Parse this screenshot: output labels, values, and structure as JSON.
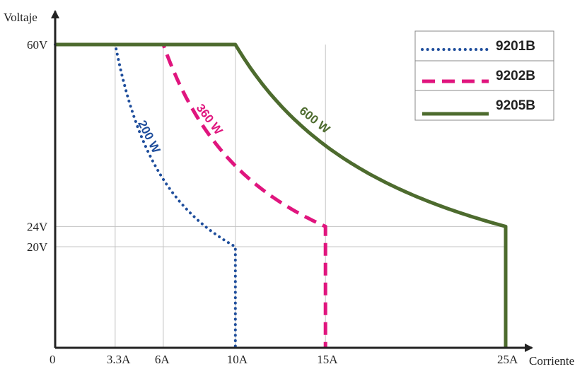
{
  "chart_data": {
    "type": "line",
    "xlabel": "Corriente",
    "ylabel": "Voltaje",
    "xlim": [
      0,
      25
    ],
    "ylim": [
      0,
      60
    ],
    "x_ticks": [
      {
        "value": 0,
        "label": "0"
      },
      {
        "value": 3.33,
        "label": "3.3A"
      },
      {
        "value": 6,
        "label": "6A"
      },
      {
        "value": 10,
        "label": "10A"
      },
      {
        "value": 15,
        "label": "15A"
      },
      {
        "value": 25,
        "label": "25A"
      }
    ],
    "y_ticks": [
      {
        "value": 60,
        "label": "60V"
      },
      {
        "value": 24,
        "label": "24V"
      },
      {
        "value": 20,
        "label": "20V"
      }
    ],
    "series": [
      {
        "name": "9201B",
        "power_label": "200 W",
        "power": 200,
        "v_max": 60,
        "v_min": 20,
        "i_max": 10,
        "color": "#1f4e9c",
        "style": "dotted"
      },
      {
        "name": "9202B",
        "power_label": "360 W",
        "power": 360,
        "v_max": 60,
        "v_min": 24,
        "i_max": 15,
        "color": "#e0157e",
        "style": "dashed"
      },
      {
        "name": "9205B",
        "power_label": "600 W",
        "power": 600,
        "v_max": 60,
        "v_min": 24,
        "i_max": 25,
        "color": "#4d6b2e",
        "style": "solid"
      }
    ],
    "legend_position": "top-right",
    "grid": "reference lines at tick values"
  }
}
